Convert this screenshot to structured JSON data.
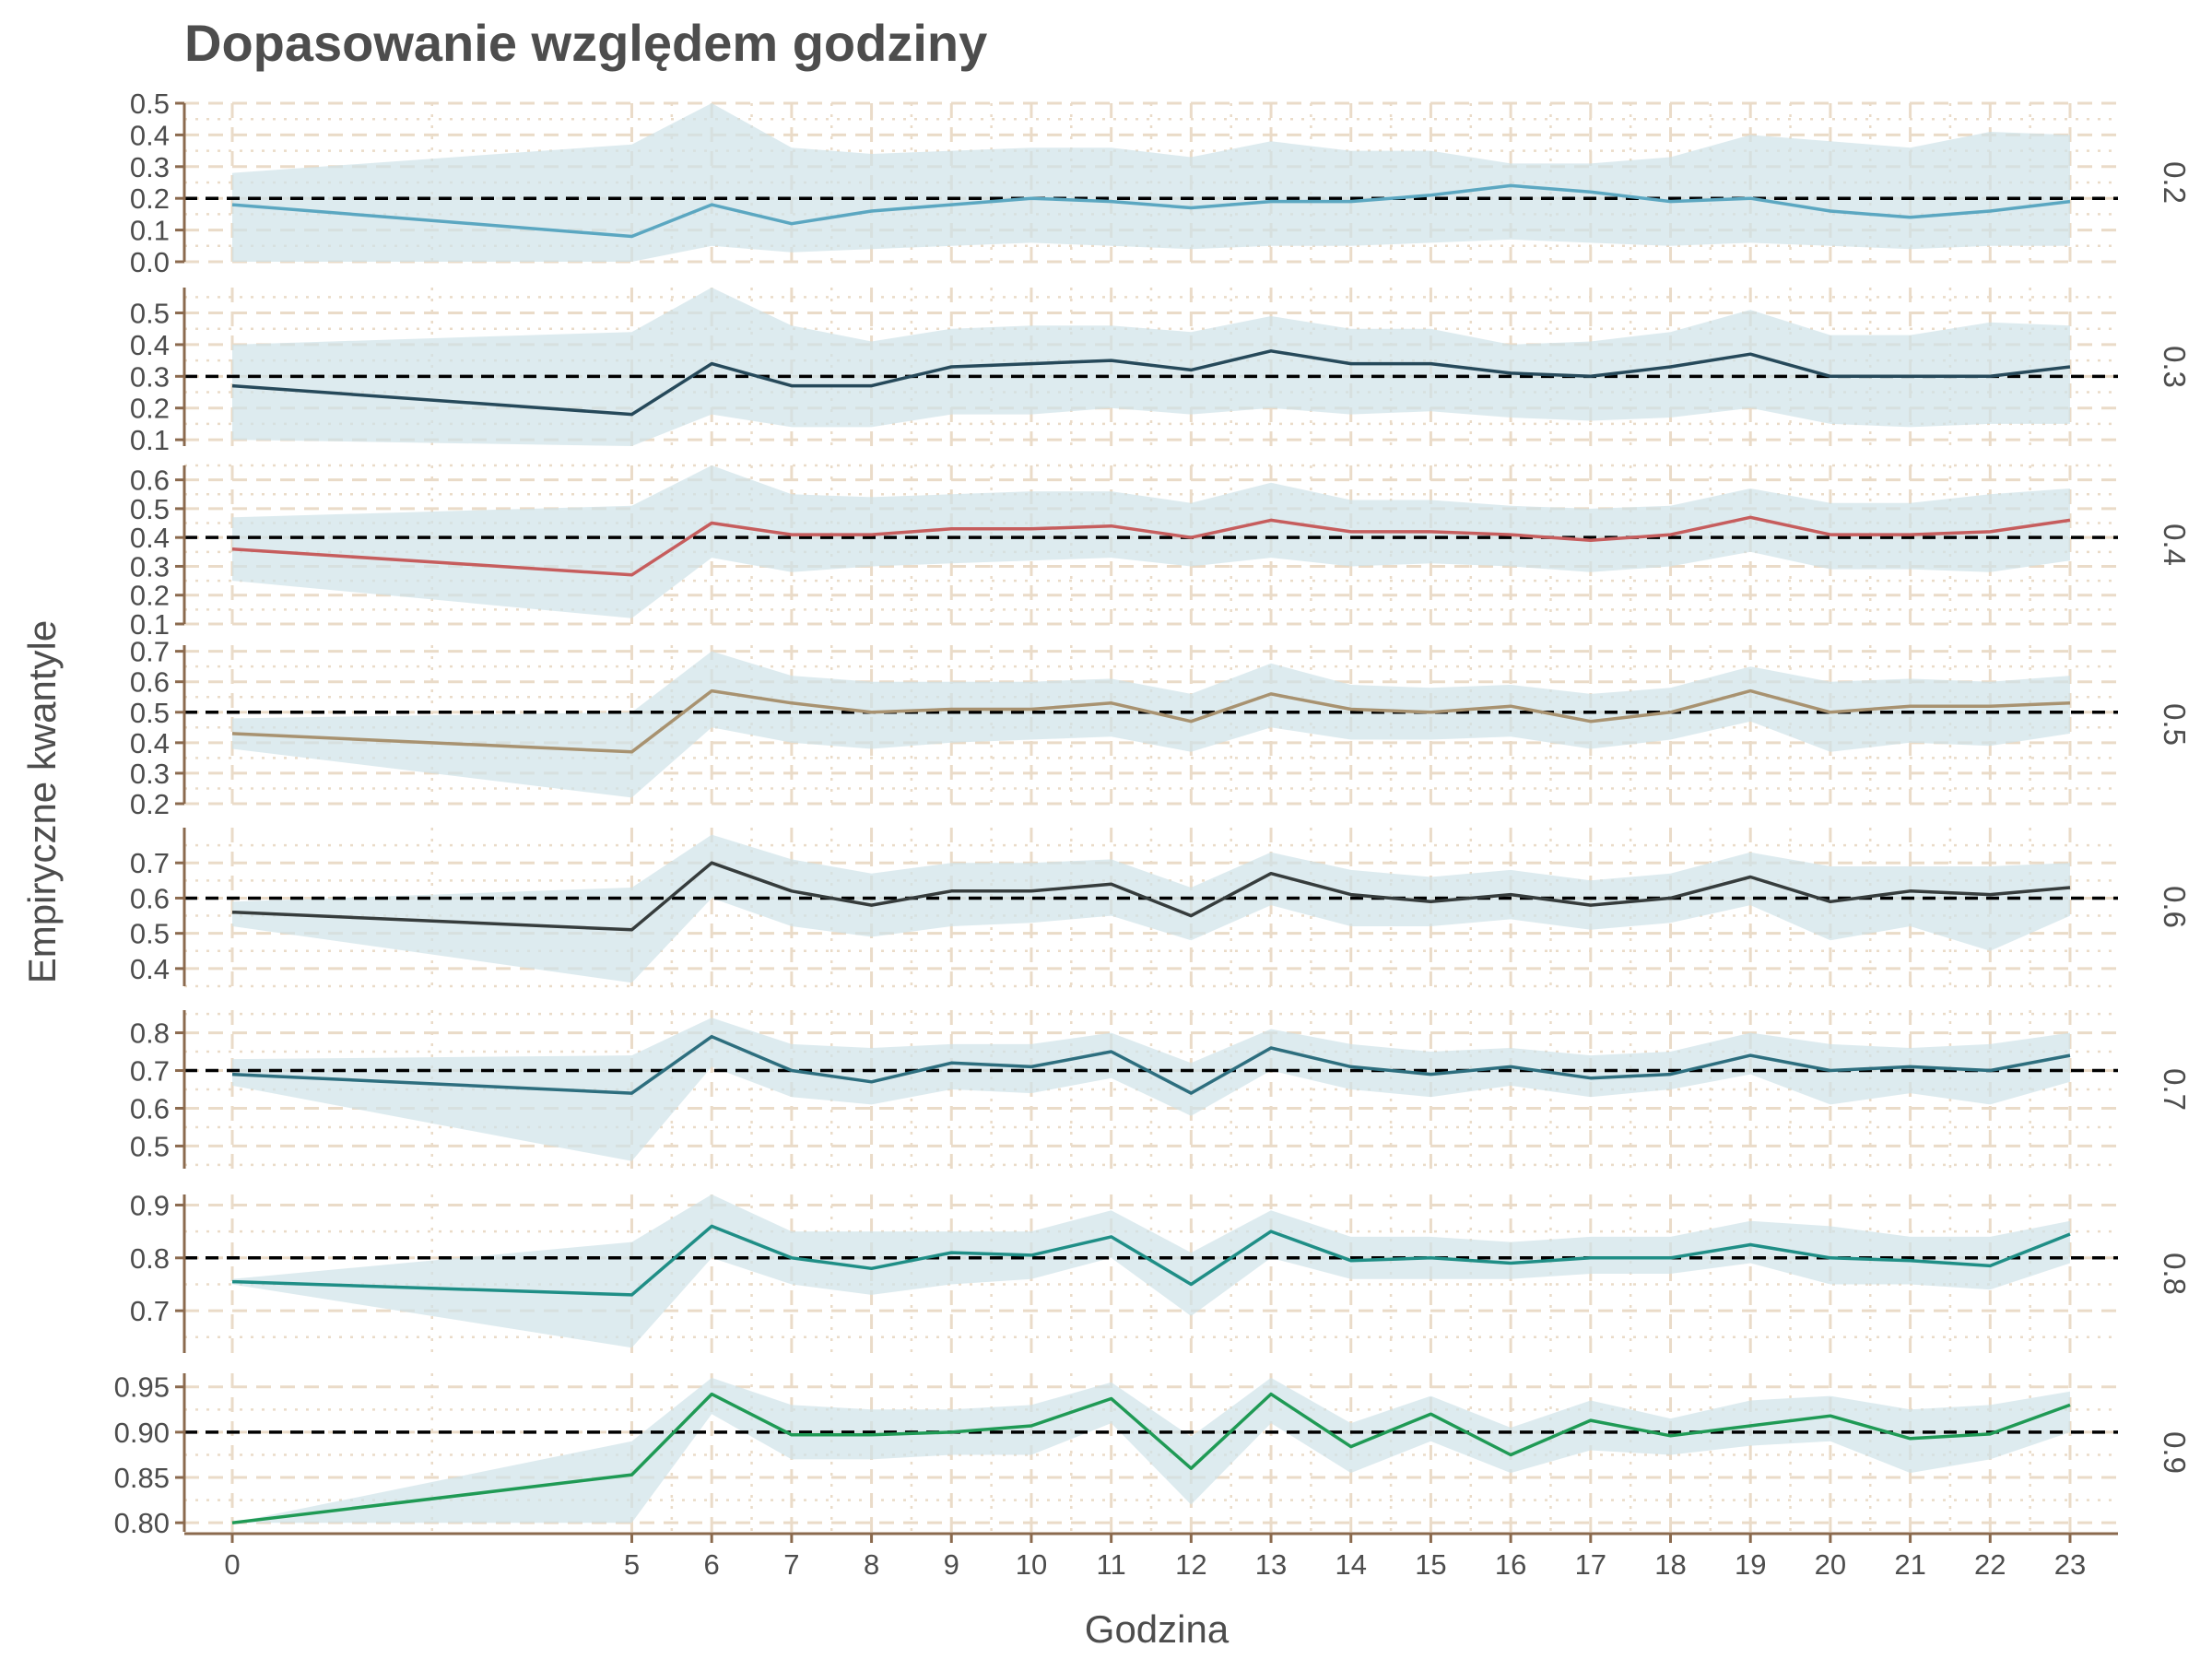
{
  "chart_data": {
    "type": "line",
    "title": "Dopasowanie względem godziny",
    "xlabel": "Godzina",
    "ylabel": "Empiryczne kwantyle",
    "x": [
      0,
      5,
      6,
      7,
      8,
      9,
      10,
      11,
      12,
      13,
      14,
      15,
      16,
      17,
      18,
      19,
      20,
      21,
      22,
      23
    ],
    "xlim": [
      -0.6,
      23.6
    ],
    "grid": true,
    "band_color": "#cfe3e8",
    "reference_line_color": "#000000",
    "panels": [
      {
        "strip_label": "0.2",
        "reference": 0.2,
        "ylim": [
          0.0,
          0.5
        ],
        "yticks": [
          "0.0",
          "0.1",
          "0.2",
          "0.3",
          "0.4",
          "0.5"
        ],
        "color": "#5ba7c1",
        "values": [
          0.18,
          0.08,
          0.18,
          0.12,
          0.16,
          0.18,
          0.2,
          0.19,
          0.17,
          0.19,
          0.19,
          0.21,
          0.24,
          0.22,
          0.19,
          0.2,
          0.16,
          0.14,
          0.16,
          0.19
        ],
        "lower": [
          0.0,
          0.0,
          0.05,
          0.03,
          0.04,
          0.05,
          0.06,
          0.05,
          0.04,
          0.05,
          0.05,
          0.06,
          0.07,
          0.06,
          0.05,
          0.06,
          0.05,
          0.04,
          0.05,
          0.05
        ],
        "upper": [
          0.28,
          0.37,
          0.5,
          0.36,
          0.34,
          0.35,
          0.36,
          0.36,
          0.33,
          0.38,
          0.35,
          0.35,
          0.31,
          0.31,
          0.33,
          0.4,
          0.38,
          0.36,
          0.41,
          0.4
        ]
      },
      {
        "strip_label": "0.3",
        "reference": 0.3,
        "ylim": [
          0.08,
          0.58
        ],
        "yticks": [
          "0.1",
          "0.2",
          "0.3",
          "0.4",
          "0.5"
        ],
        "color": "#26495a",
        "values": [
          0.27,
          0.18,
          0.34,
          0.27,
          0.27,
          0.33,
          0.34,
          0.35,
          0.32,
          0.38,
          0.34,
          0.34,
          0.31,
          0.3,
          0.33,
          0.37,
          0.3,
          0.3,
          0.3,
          0.33
        ],
        "lower": [
          0.1,
          0.08,
          0.18,
          0.14,
          0.14,
          0.18,
          0.18,
          0.2,
          0.18,
          0.2,
          0.18,
          0.19,
          0.17,
          0.16,
          0.17,
          0.2,
          0.15,
          0.14,
          0.15,
          0.15
        ],
        "upper": [
          0.4,
          0.44,
          0.58,
          0.46,
          0.41,
          0.45,
          0.46,
          0.46,
          0.44,
          0.49,
          0.45,
          0.45,
          0.4,
          0.41,
          0.44,
          0.51,
          0.43,
          0.43,
          0.47,
          0.46
        ]
      },
      {
        "strip_label": "0.4",
        "reference": 0.4,
        "ylim": [
          0.1,
          0.65
        ],
        "yticks": [
          "0.1",
          "0.2",
          "0.3",
          "0.4",
          "0.5",
          "0.6"
        ],
        "color": "#c65d5d",
        "values": [
          0.36,
          0.27,
          0.45,
          0.41,
          0.41,
          0.43,
          0.43,
          0.44,
          0.4,
          0.46,
          0.42,
          0.42,
          0.41,
          0.39,
          0.41,
          0.47,
          0.41,
          0.41,
          0.42,
          0.46
        ],
        "lower": [
          0.25,
          0.12,
          0.33,
          0.28,
          0.3,
          0.31,
          0.32,
          0.33,
          0.3,
          0.33,
          0.3,
          0.31,
          0.3,
          0.28,
          0.3,
          0.35,
          0.29,
          0.29,
          0.28,
          0.32
        ],
        "upper": [
          0.47,
          0.51,
          0.65,
          0.55,
          0.54,
          0.55,
          0.56,
          0.56,
          0.52,
          0.59,
          0.53,
          0.53,
          0.51,
          0.5,
          0.51,
          0.57,
          0.52,
          0.52,
          0.55,
          0.57
        ]
      },
      {
        "strip_label": "0.5",
        "reference": 0.5,
        "ylim": [
          0.2,
          0.72
        ],
        "yticks": [
          "0.2",
          "0.3",
          "0.4",
          "0.5",
          "0.6",
          "0.7"
        ],
        "color": "#a89270",
        "values": [
          0.43,
          0.37,
          0.57,
          0.53,
          0.5,
          0.51,
          0.51,
          0.53,
          0.47,
          0.56,
          0.51,
          0.5,
          0.52,
          0.47,
          0.5,
          0.57,
          0.5,
          0.52,
          0.52,
          0.53
        ],
        "lower": [
          0.38,
          0.22,
          0.45,
          0.4,
          0.38,
          0.4,
          0.41,
          0.42,
          0.37,
          0.45,
          0.41,
          0.41,
          0.42,
          0.38,
          0.41,
          0.47,
          0.37,
          0.4,
          0.39,
          0.43
        ],
        "upper": [
          0.48,
          0.5,
          0.7,
          0.62,
          0.6,
          0.6,
          0.6,
          0.61,
          0.56,
          0.66,
          0.59,
          0.58,
          0.59,
          0.56,
          0.58,
          0.65,
          0.6,
          0.61,
          0.6,
          0.62
        ]
      },
      {
        "strip_label": "0.6",
        "reference": 0.6,
        "ylim": [
          0.35,
          0.8
        ],
        "yticks": [
          "0.4",
          "0.5",
          "0.6",
          "0.7"
        ],
        "color": "#363c3c",
        "values": [
          0.56,
          0.51,
          0.7,
          0.62,
          0.58,
          0.62,
          0.62,
          0.64,
          0.55,
          0.67,
          0.61,
          0.59,
          0.61,
          0.58,
          0.6,
          0.66,
          0.59,
          0.62,
          0.61,
          0.63
        ],
        "lower": [
          0.52,
          0.36,
          0.6,
          0.52,
          0.49,
          0.52,
          0.53,
          0.55,
          0.48,
          0.58,
          0.52,
          0.52,
          0.54,
          0.51,
          0.53,
          0.58,
          0.48,
          0.52,
          0.45,
          0.55
        ],
        "upper": [
          0.59,
          0.63,
          0.78,
          0.71,
          0.67,
          0.7,
          0.7,
          0.71,
          0.63,
          0.73,
          0.68,
          0.66,
          0.68,
          0.65,
          0.67,
          0.73,
          0.69,
          0.69,
          0.69,
          0.7
        ]
      },
      {
        "strip_label": "0.7",
        "reference": 0.7,
        "ylim": [
          0.44,
          0.86
        ],
        "yticks": [
          "0.5",
          "0.6",
          "0.7",
          "0.8"
        ],
        "color": "#2d6e7e",
        "values": [
          0.69,
          0.64,
          0.79,
          0.7,
          0.67,
          0.72,
          0.71,
          0.75,
          0.64,
          0.76,
          0.71,
          0.69,
          0.71,
          0.68,
          0.69,
          0.74,
          0.7,
          0.71,
          0.7,
          0.74
        ],
        "lower": [
          0.66,
          0.46,
          0.71,
          0.63,
          0.61,
          0.65,
          0.64,
          0.68,
          0.58,
          0.7,
          0.65,
          0.63,
          0.66,
          0.63,
          0.65,
          0.69,
          0.61,
          0.64,
          0.61,
          0.67
        ],
        "upper": [
          0.73,
          0.74,
          0.84,
          0.77,
          0.76,
          0.77,
          0.77,
          0.8,
          0.72,
          0.81,
          0.77,
          0.75,
          0.76,
          0.74,
          0.75,
          0.8,
          0.77,
          0.76,
          0.77,
          0.8
        ]
      },
      {
        "strip_label": "0.8",
        "reference": 0.8,
        "ylim": [
          0.62,
          0.92
        ],
        "yticks": [
          "0.7",
          "0.8",
          "0.9"
        ],
        "color": "#1f8e86",
        "values": [
          0.755,
          0.73,
          0.86,
          0.8,
          0.78,
          0.81,
          0.805,
          0.84,
          0.75,
          0.85,
          0.795,
          0.8,
          0.79,
          0.8,
          0.8,
          0.825,
          0.8,
          0.795,
          0.785,
          0.845
        ],
        "lower": [
          0.75,
          0.63,
          0.8,
          0.75,
          0.73,
          0.75,
          0.76,
          0.8,
          0.69,
          0.8,
          0.76,
          0.76,
          0.76,
          0.77,
          0.77,
          0.79,
          0.75,
          0.75,
          0.74,
          0.79
        ],
        "upper": [
          0.76,
          0.83,
          0.92,
          0.85,
          0.85,
          0.85,
          0.85,
          0.89,
          0.81,
          0.89,
          0.84,
          0.84,
          0.83,
          0.84,
          0.84,
          0.87,
          0.86,
          0.84,
          0.84,
          0.87
        ]
      },
      {
        "strip_label": "0.9",
        "reference": 0.9,
        "ylim": [
          0.79,
          0.965
        ],
        "yticks": [
          "0.80",
          "0.85",
          "0.90",
          "0.95"
        ],
        "color": "#1f9a55",
        "values": [
          0.8,
          0.853,
          0.942,
          0.897,
          0.897,
          0.9,
          0.907,
          0.937,
          0.86,
          0.942,
          0.884,
          0.92,
          0.875,
          0.913,
          0.896,
          0.907,
          0.918,
          0.893,
          0.898,
          0.93
        ],
        "lower": [
          0.8,
          0.8,
          0.92,
          0.87,
          0.87,
          0.875,
          0.875,
          0.91,
          0.82,
          0.91,
          0.855,
          0.89,
          0.855,
          0.88,
          0.875,
          0.885,
          0.89,
          0.855,
          0.87,
          0.9
        ],
        "upper": [
          0.8,
          0.89,
          0.96,
          0.93,
          0.925,
          0.925,
          0.93,
          0.955,
          0.895,
          0.96,
          0.91,
          0.94,
          0.905,
          0.935,
          0.915,
          0.935,
          0.94,
          0.925,
          0.93,
          0.945
        ]
      }
    ]
  }
}
